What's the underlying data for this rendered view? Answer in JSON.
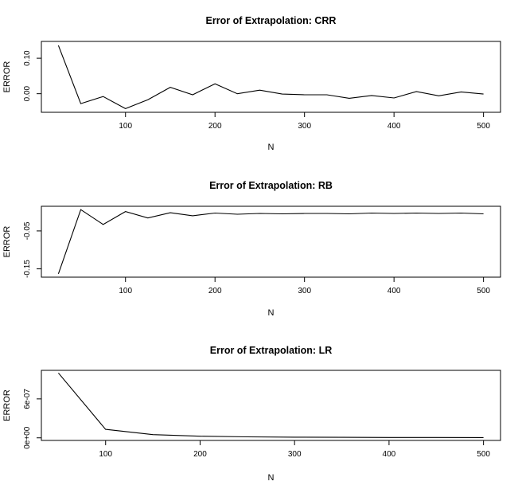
{
  "chart_data": [
    {
      "type": "line",
      "title": "Error of Extrapolation: CRR",
      "xlabel": "N",
      "ylabel": "ERROR",
      "x": [
        25,
        50,
        75,
        100,
        125,
        150,
        175,
        200,
        225,
        250,
        275,
        300,
        325,
        350,
        375,
        400,
        425,
        450,
        475,
        500
      ],
      "y": [
        0.136,
        -0.028,
        -0.008,
        -0.042,
        -0.017,
        0.018,
        -0.003,
        0.028,
        0.0,
        0.01,
        -0.001,
        -0.003,
        -0.003,
        -0.013,
        -0.005,
        -0.012,
        0.006,
        -0.006,
        0.005,
        -0.001
      ],
      "xlim": [
        25,
        500
      ],
      "ylim": [
        -0.045,
        0.14
      ],
      "xticks": [
        100,
        200,
        300,
        400,
        500
      ],
      "xtick_labels": [
        "100",
        "200",
        "300",
        "400",
        "500"
      ],
      "yticks": [
        0.0,
        0.1
      ],
      "ytick_labels": [
        "0.00",
        "0.10"
      ],
      "grid": false
    },
    {
      "type": "line",
      "title": "Error of Extrapolation: RB",
      "xlabel": "N",
      "ylabel": "ERROR",
      "x": [
        25,
        50,
        75,
        100,
        125,
        150,
        175,
        200,
        225,
        250,
        275,
        300,
        325,
        350,
        375,
        400,
        425,
        450,
        475,
        500
      ],
      "y": [
        -0.163,
        0.006,
        -0.033,
        0.001,
        -0.016,
        -0.002,
        -0.01,
        -0.003,
        -0.006,
        -0.004,
        -0.005,
        -0.004,
        -0.004,
        -0.005,
        -0.003,
        -0.004,
        -0.003,
        -0.004,
        -0.003,
        -0.005
      ],
      "xlim": [
        25,
        500
      ],
      "ylim": [
        -0.165,
        0.008
      ],
      "xticks": [
        100,
        200,
        300,
        400,
        500
      ],
      "xtick_labels": [
        "100",
        "200",
        "300",
        "400",
        "500"
      ],
      "yticks": [
        -0.15,
        -0.05
      ],
      "ytick_labels": [
        "-0.15",
        "-0.05"
      ],
      "grid": false
    },
    {
      "type": "line",
      "title": "Error of Extrapolation: LR",
      "xlabel": "N",
      "ylabel": "ERROR",
      "x": [
        50,
        100,
        150,
        200,
        250,
        300,
        350,
        400,
        450,
        500
      ],
      "y": [
        1e-06,
        1.3e-07,
        5e-08,
        2.5e-08,
        1.5e-08,
        1e-08,
        8e-09,
        6e-09,
        5e-09,
        4e-09
      ],
      "xlim": [
        50,
        500
      ],
      "ylim": [
        0,
        1e-06
      ],
      "xticks": [
        100,
        200,
        300,
        400,
        500
      ],
      "xtick_labels": [
        "100",
        "200",
        "300",
        "400",
        "500"
      ],
      "yticks": [
        0,
        6e-07
      ],
      "ytick_labels": [
        "0e+00",
        "6e-07"
      ],
      "grid": false
    }
  ]
}
